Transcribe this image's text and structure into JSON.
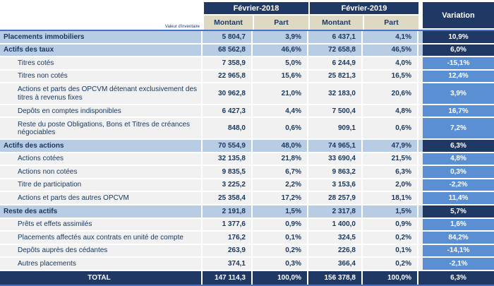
{
  "header": {
    "corner_note": "Valeur d'inventaire",
    "col_2018": "Février-2018",
    "col_2019": "Février-2019",
    "variation": "Variation",
    "subheaders": [
      "Montant",
      "Part",
      "Montant",
      "Part"
    ]
  },
  "colors": {
    "navy": "#1F3864",
    "accent_line": "#4472C4",
    "category_row_bg": "#B8CCE4",
    "item_row_bg": "#F1F1F2",
    "item_variation_bg": "#5B8FD4",
    "subheader_bg": "#DDD9C3",
    "text": "#17375D"
  },
  "table": {
    "rows": [
      {
        "type": "category",
        "label": "Placements immobiliers",
        "m2018": "5 804,7",
        "p2018": "3,9%",
        "m2019": "6 437,1",
        "p2019": "4,1%",
        "variation": "10,9%"
      },
      {
        "type": "category",
        "label": "Actifs des taux",
        "m2018": "68 562,8",
        "p2018": "46,6%",
        "m2019": "72 658,8",
        "p2019": "46,5%",
        "variation": "6,0%"
      },
      {
        "type": "item",
        "label": "Titres cotés",
        "m2018": "7 358,9",
        "p2018": "5,0%",
        "m2019": "6 244,9",
        "p2019": "4,0%",
        "variation": "-15,1%"
      },
      {
        "type": "item",
        "label": "Titres non cotés",
        "m2018": "22 965,8",
        "p2018": "15,6%",
        "m2019": "25 821,3",
        "p2019": "16,5%",
        "variation": "12,4%"
      },
      {
        "type": "item",
        "label": "Actions et parts des OPCVM détenant exclusivement des titres à revenus fixes",
        "m2018": "30 962,8",
        "p2018": "21,0%",
        "m2019": "32 183,0",
        "p2019": "20,6%",
        "variation": "3,9%"
      },
      {
        "type": "item",
        "label": "Depôts en comptes indisponibles",
        "m2018": "6 427,3",
        "p2018": "4,4%",
        "m2019": "7 500,4",
        "p2019": "4,8%",
        "variation": "16,7%"
      },
      {
        "type": "item",
        "label": "Reste du poste Obligations, Bons et Titres de créances négociables",
        "m2018": "848,0",
        "p2018": "0,6%",
        "m2019": "909,1",
        "p2019": "0,6%",
        "variation": "7,2%"
      },
      {
        "type": "category",
        "label": "Actifs des actions",
        "m2018": "70 554,9",
        "p2018": "48,0%",
        "m2019": "74 965,1",
        "p2019": "47,9%",
        "variation": "6,3%"
      },
      {
        "type": "item",
        "label": "Actions cotées",
        "m2018": "32 135,8",
        "p2018": "21,8%",
        "m2019": "33 690,4",
        "p2019": "21,5%",
        "variation": "4,8%"
      },
      {
        "type": "item",
        "label": "Actions non cotées",
        "m2018": "9 835,5",
        "p2018": "6,7%",
        "m2019": "9 863,2",
        "p2019": "6,3%",
        "variation": "0,3%"
      },
      {
        "type": "item",
        "label": "Titre de participation",
        "m2018": "3 225,2",
        "p2018": "2,2%",
        "m2019": "3 153,6",
        "p2019": "2,0%",
        "variation": "-2,2%"
      },
      {
        "type": "item",
        "label": "Actions et parts des autres OPCVM",
        "m2018": "25 358,4",
        "p2018": "17,2%",
        "m2019": "28 257,9",
        "p2019": "18,1%",
        "variation": "11,4%"
      },
      {
        "type": "category",
        "label": "Reste des actifs",
        "m2018": "2 191,8",
        "p2018": "1,5%",
        "m2019": "2 317,8",
        "p2019": "1,5%",
        "variation": "5,7%"
      },
      {
        "type": "item",
        "label": "Prêts et effets assimilés",
        "m2018": "1 377,6",
        "p2018": "0,9%",
        "m2019": "1 400,0",
        "p2019": "0,9%",
        "variation": "1,6%"
      },
      {
        "type": "item",
        "label": "Placements affectés aux contrats en unité de compte",
        "m2018": "176,2",
        "p2018": "0,1%",
        "m2019": "324,5",
        "p2019": "0,2%",
        "variation": "84,2%"
      },
      {
        "type": "item",
        "label": "Depôts auprès des cédantes",
        "m2018": "263,9",
        "p2018": "0,2%",
        "m2019": "226,8",
        "p2019": "0,1%",
        "variation": "-14,1%"
      },
      {
        "type": "item",
        "label": "Autres placements",
        "m2018": "374,1",
        "p2018": "0,3%",
        "m2019": "366,4",
        "p2019": "0,2%",
        "variation": "-2,1%"
      },
      {
        "type": "total",
        "label": "TOTAL",
        "m2018": "147 114,3",
        "p2018": "100,0%",
        "m2019": "156 378,8",
        "p2019": "100,0%",
        "variation": "6,3%"
      }
    ]
  }
}
